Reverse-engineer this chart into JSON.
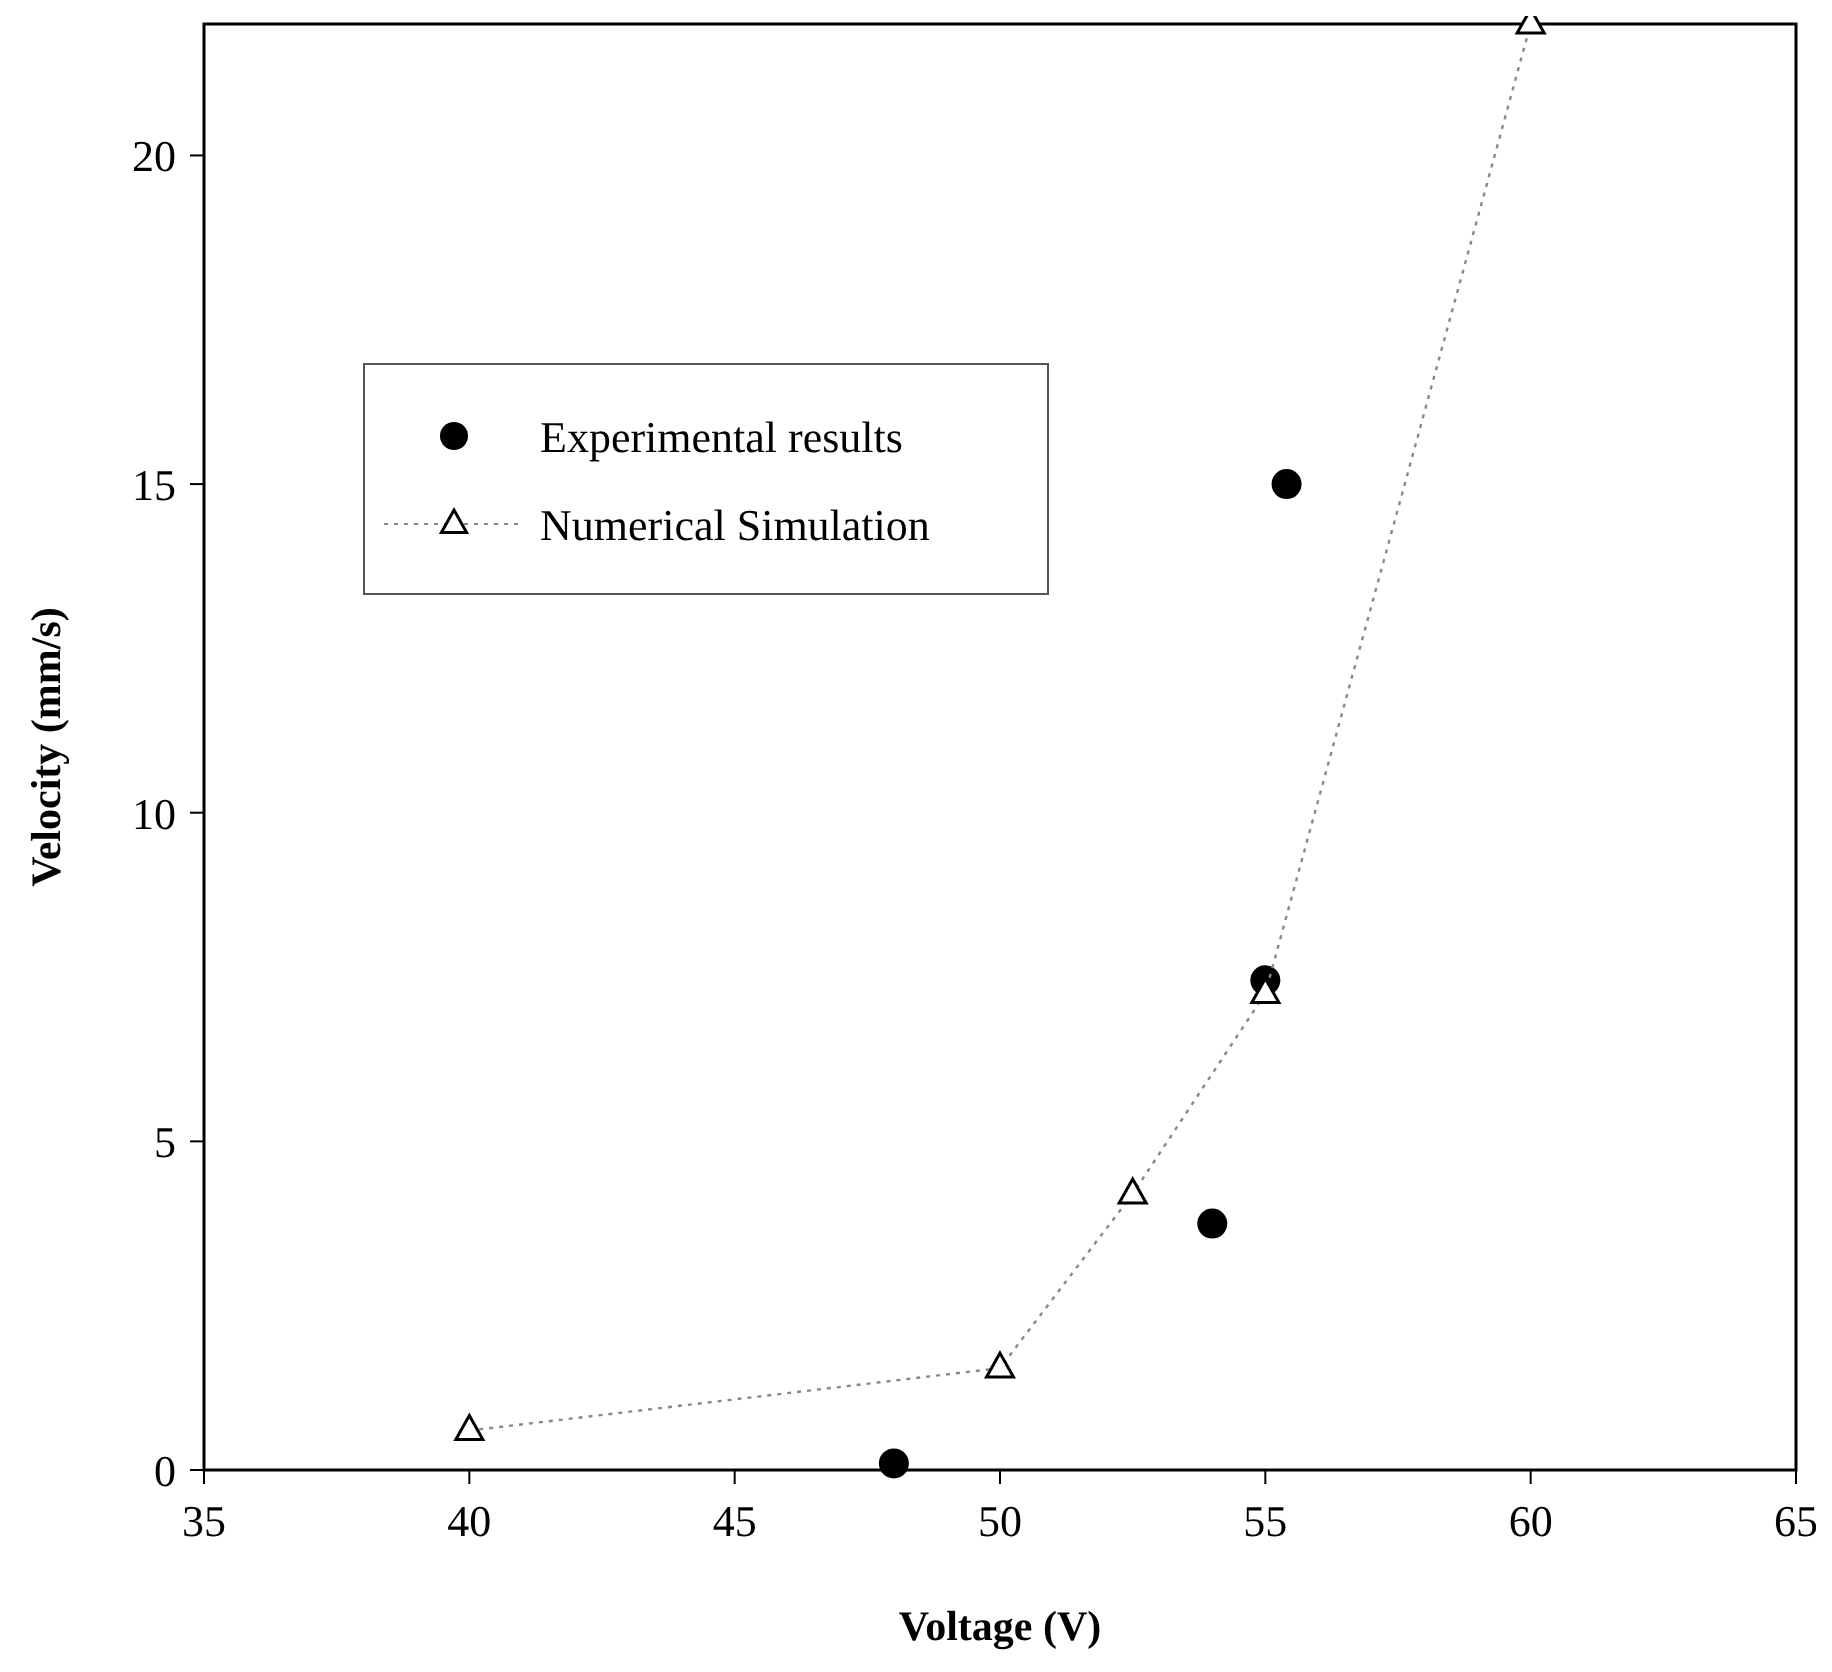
{
  "chart_data": {
    "type": "scatter",
    "xlabel": "Voltage (V)",
    "ylabel": "Velocity (mm/s)",
    "xlim": [
      35,
      65
    ],
    "xticks": [
      35,
      40,
      45,
      50,
      55,
      60,
      65
    ],
    "ylim": [
      0,
      22
    ],
    "yticks": [
      0,
      5,
      10,
      15,
      20
    ],
    "grid": false,
    "legend": "top left",
    "series": [
      {
        "name": "Experimental results",
        "marker": "circle",
        "color": "#000000",
        "x": [
          48,
          54,
          55,
          55.4
        ],
        "values": [
          0.1,
          3.75,
          7.45,
          15.0
        ]
      },
      {
        "name": "Numerical Simulation",
        "type": "line",
        "marker": "triangle",
        "line_style": "dotted",
        "color": "#000000",
        "x": [
          40,
          50,
          52.5,
          55,
          60
        ],
        "values": [
          0.6,
          1.55,
          4.2,
          7.25,
          22
        ]
      }
    ]
  }
}
